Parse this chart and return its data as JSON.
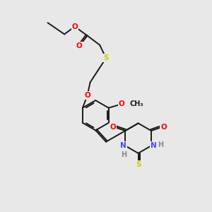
{
  "bg_color": "#e8e8e8",
  "bond_color": "#1a1a1a",
  "bond_width": 1.4,
  "dbo": 0.07,
  "atom_colors": {
    "O": "#ff0000",
    "S": "#cccc00",
    "N": "#4444ff",
    "H": "#888888",
    "C": "#1a1a1a"
  },
  "font_size": 7.5,
  "fig_size": [
    3.0,
    3.0
  ],
  "dpi": 100
}
